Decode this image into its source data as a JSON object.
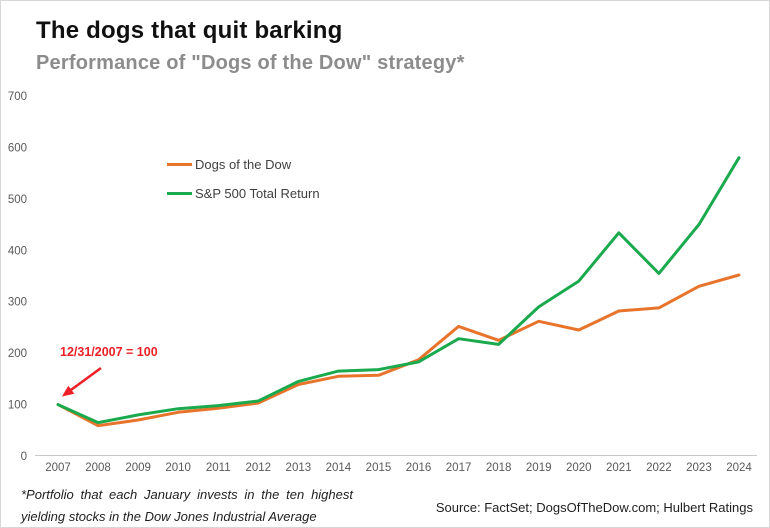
{
  "header": {
    "title": "The dogs that quit barking",
    "subtitle": "Performance of \"Dogs of the Dow\" strategy*"
  },
  "annotation": {
    "label": "12/31/2007 = 100",
    "color": "#ec2027"
  },
  "legend": {
    "items": [
      {
        "label": "Dogs of the Dow",
        "color": "#e8742c"
      },
      {
        "label": "S&P 500 Total Return",
        "color": "#1aaa4d"
      }
    ]
  },
  "footnote": {
    "line1": "*Portfolio that each January invests in the ten highest",
    "line2": "yielding stocks in the Dow Jones Industrial Average"
  },
  "source": {
    "text": "Source: FactSet; DogsOfTheDow.com; Hulbert Ratings"
  },
  "chart_data": {
    "type": "line",
    "title": "The dogs that quit barking",
    "subtitle": "Performance of \"Dogs of the Dow\" strategy*",
    "x": [
      2007,
      2008,
      2009,
      2010,
      2011,
      2012,
      2013,
      2014,
      2015,
      2016,
      2017,
      2018,
      2019,
      2020,
      2021,
      2022,
      2023,
      2024
    ],
    "series": [
      {
        "name": "Dogs of the Dow",
        "color": "#e8742c",
        "values": [
          100,
          59,
          70,
          85,
          93,
          103,
          139,
          155,
          157,
          187,
          252,
          225,
          262,
          245,
          282,
          288,
          330,
          352
        ]
      },
      {
        "name": "S&P 500 Total Return",
        "color": "#1aaa4d",
        "values": [
          100,
          65,
          80,
          92,
          98,
          107,
          145,
          165,
          168,
          183,
          228,
          217,
          290,
          340,
          434,
          355,
          450,
          580
        ]
      }
    ],
    "ylim": [
      0,
      700
    ],
    "yticks": [
      0,
      100,
      200,
      300,
      400,
      500,
      600,
      700
    ],
    "grid": false,
    "legend_position": "upper-left-inside",
    "annotation": "12/31/2007 = 100",
    "index_base_note": "12/31/2007 = 100"
  }
}
